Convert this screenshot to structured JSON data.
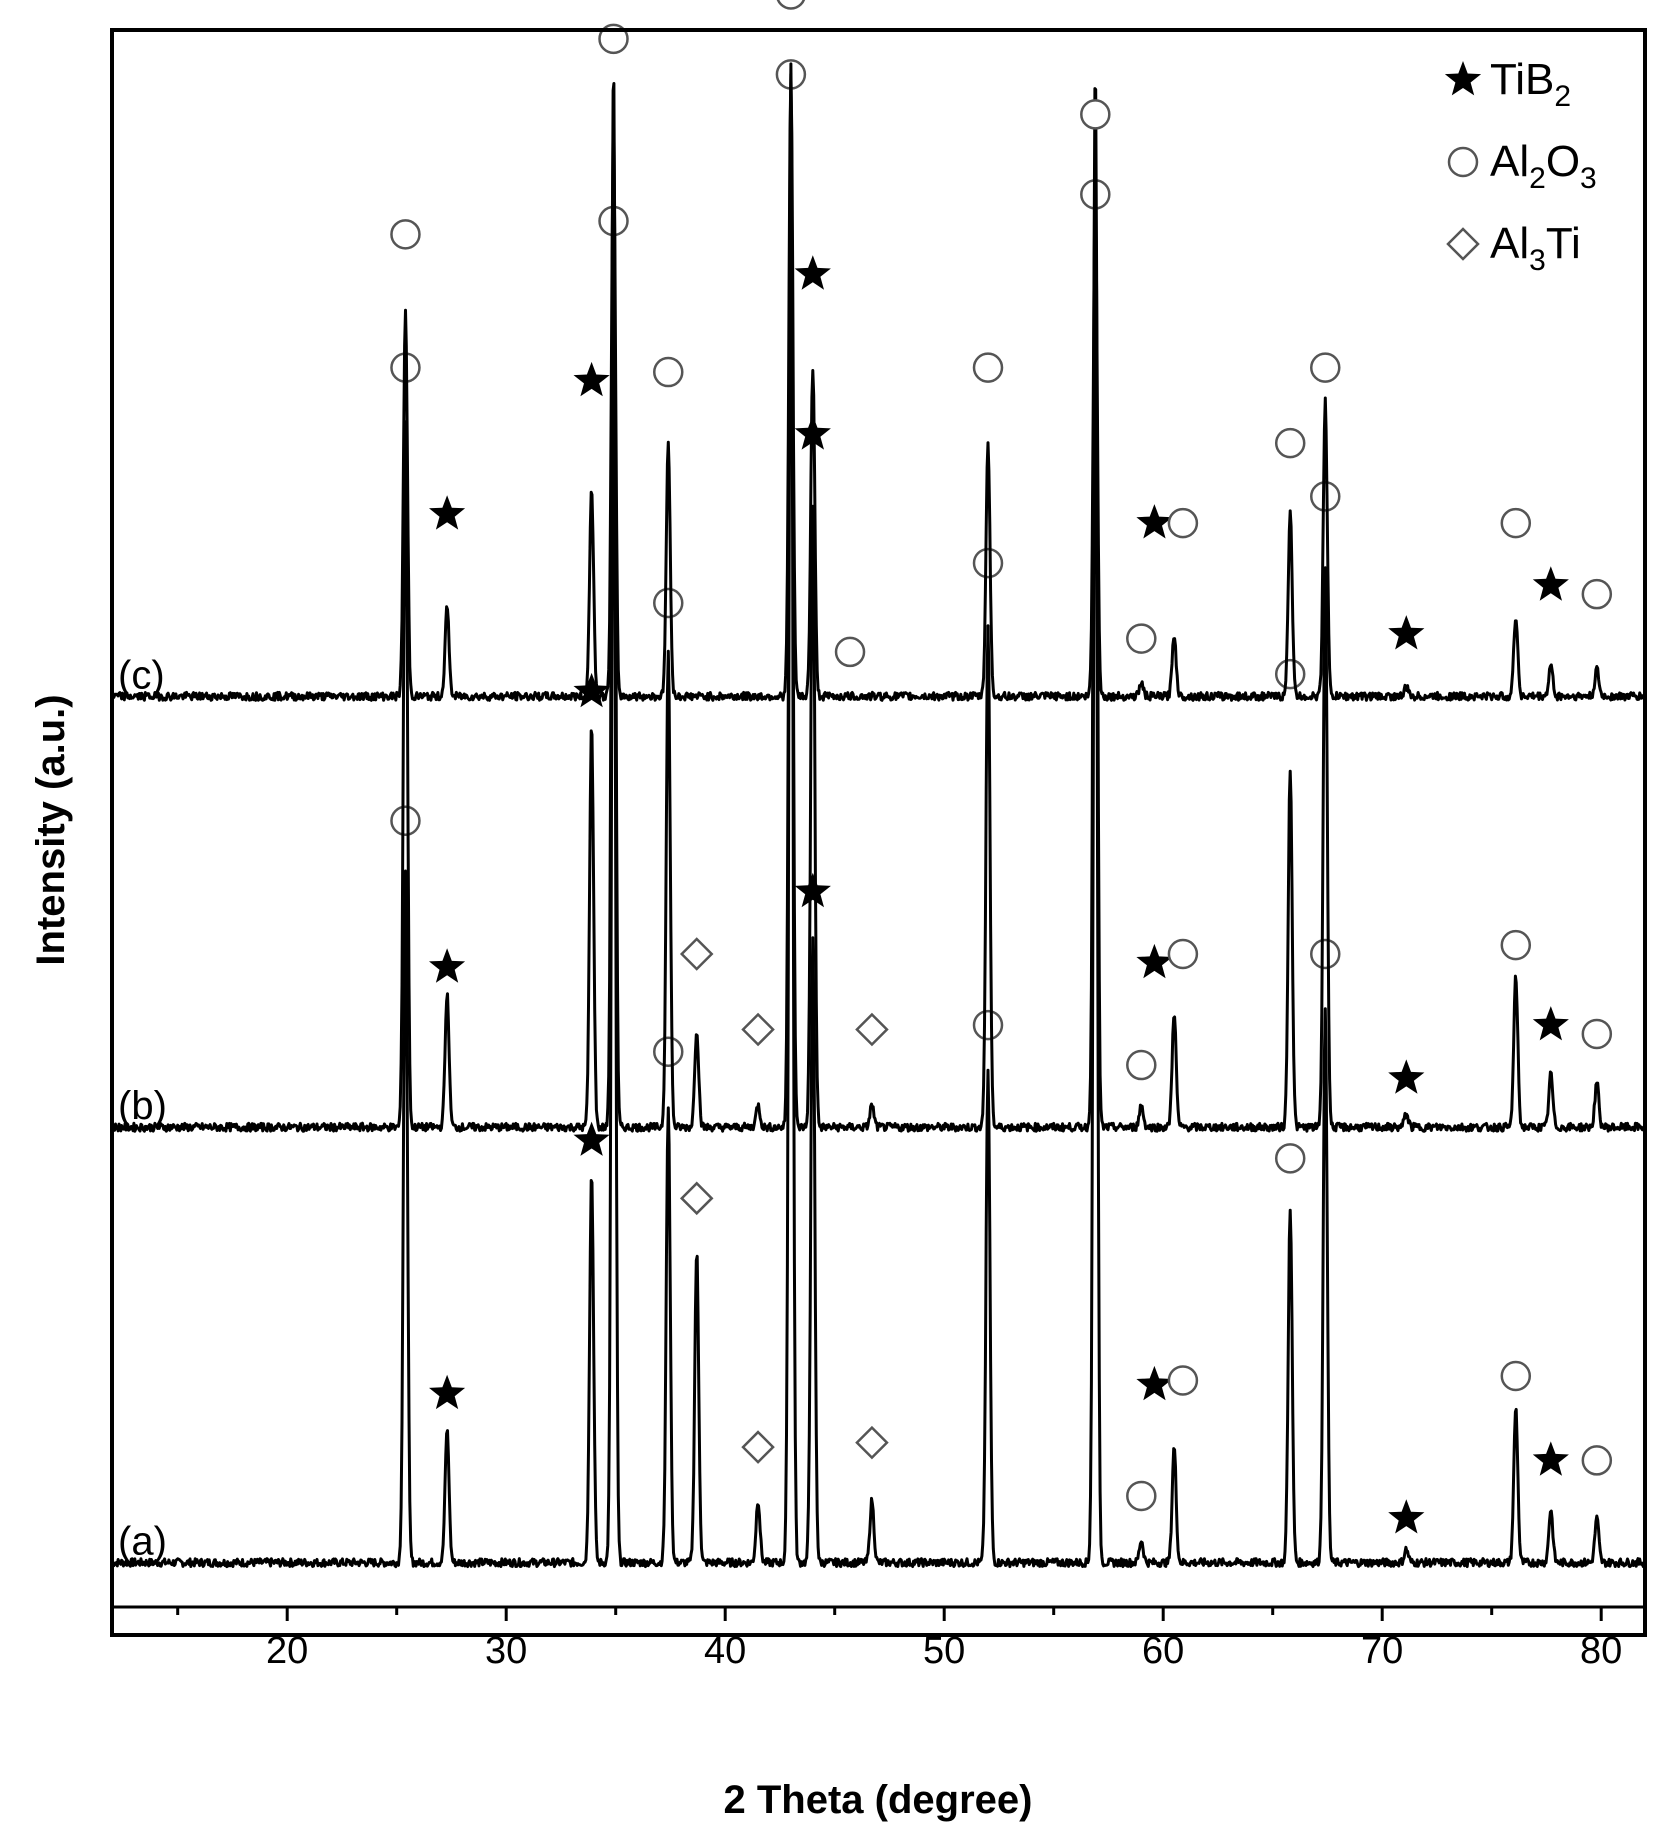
{
  "chart_data": {
    "type": "line",
    "title": "",
    "xlabel": "2 Theta (degree)",
    "ylabel": "Intensity (a.u.)",
    "xlim": [
      12,
      82
    ],
    "ylim": [
      0,
      3.55
    ],
    "xticks": [
      20,
      30,
      40,
      50,
      60,
      70,
      80
    ],
    "x_tick_labels": [
      "20",
      "30",
      "40",
      "50",
      "60",
      "70",
      "80"
    ],
    "yticks_shown": false,
    "grid": false,
    "legend": {
      "placement": "top-right",
      "entries": [
        {
          "marker": "star",
          "base": "Ti",
          "sub": "",
          "mid": "B",
          "sub2": "2",
          "end": "",
          "label": "TiB2"
        },
        {
          "marker": "circle",
          "base": "Al",
          "sub": "2",
          "mid": "O",
          "sub2": "3",
          "end": "",
          "label": "Al2O3"
        },
        {
          "marker": "diamond",
          "base": "Al",
          "sub": "3",
          "mid": "Ti",
          "sub2": "",
          "end": "",
          "label": "Al3Ti"
        }
      ]
    },
    "series": [
      {
        "name": "(a)",
        "baseline": 0.1,
        "peaks": [
          {
            "x": 25.4,
            "h": 1.55,
            "phase": "Al2O3"
          },
          {
            "x": 27.3,
            "h": 0.3,
            "phase": "TiB2"
          },
          {
            "x": 33.9,
            "h": 0.88,
            "phase": "TiB2"
          },
          {
            "x": 34.9,
            "h": 2.9,
            "phase": "Al2O3"
          },
          {
            "x": 37.4,
            "h": 1.03,
            "phase": "Al2O3"
          },
          {
            "x": 38.7,
            "h": 0.7,
            "phase": "Al3Ti"
          },
          {
            "x": 41.5,
            "h": 0.14,
            "phase": "Al3Ti"
          },
          {
            "x": 43.0,
            "h": 3.3,
            "phase": "Al2O3"
          },
          {
            "x": 44.0,
            "h": 1.4,
            "phase": "TiB2"
          },
          {
            "x": 46.7,
            "h": 0.14,
            "phase": "Al3Ti"
          },
          {
            "x": 52.0,
            "h": 1.1,
            "phase": "Al2O3"
          },
          {
            "x": 56.9,
            "h": 3.0,
            "phase": "Al2O3"
          },
          {
            "x": 59.0,
            "h": 0.05,
            "phase": "Al2O3"
          },
          {
            "x": 60.5,
            "h": 0.26,
            "phase": "TiB2"
          },
          {
            "x": 65.8,
            "h": 0.8,
            "phase": "Al2O3"
          },
          {
            "x": 67.4,
            "h": 1.25,
            "phase": "Al2O3"
          },
          {
            "x": 71.1,
            "h": 0.03,
            "phase": "TiB2"
          },
          {
            "x": 76.1,
            "h": 0.35,
            "phase": "Al2O3"
          },
          {
            "x": 77.7,
            "h": 0.12,
            "phase": "TiB2"
          },
          {
            "x": 79.8,
            "h": 0.1,
            "phase": "Al2O3"
          }
        ],
        "markers": [
          {
            "x": 25.4,
            "y": 1.77,
            "type": "circle"
          },
          {
            "x": 27.3,
            "y": 0.48,
            "type": "star"
          },
          {
            "x": 33.9,
            "y": 1.05,
            "type": "star"
          },
          {
            "x": 34.9,
            "y": 3.12,
            "type": "circle"
          },
          {
            "x": 37.4,
            "y": 1.25,
            "type": "circle"
          },
          {
            "x": 38.7,
            "y": 0.92,
            "type": "diamond"
          },
          {
            "x": 41.5,
            "y": 0.36,
            "type": "diamond"
          },
          {
            "x": 43.0,
            "y": 3.45,
            "type": "circle"
          },
          {
            "x": 44.0,
            "y": 1.61,
            "type": "star"
          },
          {
            "x": 46.7,
            "y": 0.37,
            "type": "diamond"
          },
          {
            "x": 52.0,
            "y": 1.31,
            "type": "circle"
          },
          {
            "x": 56.9,
            "y": 3.18,
            "type": "circle"
          },
          {
            "x": 59.0,
            "y": 0.25,
            "type": "circle"
          },
          {
            "x": 59.6,
            "y": 0.5,
            "type": "star"
          },
          {
            "x": 60.9,
            "y": 0.51,
            "type": "circle"
          },
          {
            "x": 65.8,
            "y": 1.01,
            "type": "circle"
          },
          {
            "x": 67.4,
            "y": 1.47,
            "type": "circle"
          },
          {
            "x": 71.1,
            "y": 0.2,
            "type": "star"
          },
          {
            "x": 76.1,
            "y": 0.52,
            "type": "circle"
          },
          {
            "x": 77.7,
            "y": 0.33,
            "type": "star"
          },
          {
            "x": 79.8,
            "y": 0.33,
            "type": "circle"
          }
        ]
      },
      {
        "name": "(b)",
        "baseline": 1.08,
        "peaks": [
          {
            "x": 25.4,
            "h": 1.59,
            "phase": "Al2O3"
          },
          {
            "x": 27.3,
            "h": 0.3,
            "phase": "TiB2"
          },
          {
            "x": 33.9,
            "h": 0.91,
            "phase": "TiB2"
          },
          {
            "x": 34.9,
            "h": 2.4,
            "phase": "Al2O3"
          },
          {
            "x": 37.4,
            "h": 1.07,
            "phase": "Al2O3"
          },
          {
            "x": 38.7,
            "h": 0.22,
            "phase": "Al3Ti"
          },
          {
            "x": 41.5,
            "h": 0.05,
            "phase": "Al3Ti"
          },
          {
            "x": 43.0,
            "h": 2.4,
            "phase": "Al2O3"
          },
          {
            "x": 44.0,
            "h": 1.4,
            "phase": "TiB2"
          },
          {
            "x": 46.7,
            "h": 0.05,
            "phase": "Al3Ti"
          },
          {
            "x": 52.0,
            "h": 1.12,
            "phase": "Al2O3"
          },
          {
            "x": 56.9,
            "h": 2.4,
            "phase": "Al2O3"
          },
          {
            "x": 59.0,
            "h": 0.05,
            "phase": "Al2O3"
          },
          {
            "x": 60.5,
            "h": 0.26,
            "phase": "TiB2"
          },
          {
            "x": 65.8,
            "h": 0.81,
            "phase": "Al2O3"
          },
          {
            "x": 67.4,
            "h": 1.26,
            "phase": "Al2O3"
          },
          {
            "x": 71.1,
            "h": 0.03,
            "phase": "TiB2"
          },
          {
            "x": 76.1,
            "h": 0.34,
            "phase": "Al2O3"
          },
          {
            "x": 77.7,
            "h": 0.12,
            "phase": "TiB2"
          },
          {
            "x": 79.8,
            "h": 0.1,
            "phase": "Al2O3"
          }
        ],
        "markers": [
          {
            "x": 25.4,
            "y": 2.79,
            "type": "circle"
          },
          {
            "x": 27.3,
            "y": 1.44,
            "type": "star"
          },
          {
            "x": 33.9,
            "y": 2.06,
            "type": "star"
          },
          {
            "x": 37.4,
            "y": 2.26,
            "type": "circle"
          },
          {
            "x": 38.7,
            "y": 1.47,
            "type": "diamond"
          },
          {
            "x": 41.5,
            "y": 1.3,
            "type": "diamond"
          },
          {
            "x": 44.0,
            "y": 2.64,
            "type": "star"
          },
          {
            "x": 46.7,
            "y": 1.3,
            "type": "diamond"
          },
          {
            "x": 52.0,
            "y": 2.35,
            "type": "circle"
          },
          {
            "x": 59.0,
            "y": 1.22,
            "type": "circle"
          },
          {
            "x": 59.6,
            "y": 1.45,
            "type": "star"
          },
          {
            "x": 60.9,
            "y": 1.47,
            "type": "circle"
          },
          {
            "x": 65.8,
            "y": 2.1,
            "type": "circle"
          },
          {
            "x": 67.4,
            "y": 2.5,
            "type": "circle"
          },
          {
            "x": 71.1,
            "y": 1.19,
            "type": "star"
          },
          {
            "x": 76.1,
            "y": 1.49,
            "type": "circle"
          },
          {
            "x": 77.7,
            "y": 1.31,
            "type": "star"
          },
          {
            "x": 79.8,
            "y": 1.29,
            "type": "circle"
          }
        ]
      },
      {
        "name": "(c)",
        "baseline": 2.05,
        "peaks": [
          {
            "x": 25.4,
            "h": 0.87,
            "phase": "Al2O3"
          },
          {
            "x": 27.3,
            "h": 0.2,
            "phase": "TiB2"
          },
          {
            "x": 33.9,
            "h": 0.47,
            "phase": "TiB2"
          },
          {
            "x": 34.9,
            "h": 1.3,
            "phase": "Al2O3"
          },
          {
            "x": 37.4,
            "h": 0.57,
            "phase": "Al2O3"
          },
          {
            "x": 43.0,
            "h": 1.4,
            "phase": "Al2O3"
          },
          {
            "x": 44.0,
            "h": 0.74,
            "phase": "TiB2"
          },
          {
            "x": 45.7,
            "h": 0.0,
            "phase": "Al2O3"
          },
          {
            "x": 52.0,
            "h": 0.57,
            "phase": "Al2O3"
          },
          {
            "x": 56.9,
            "h": 1.15,
            "phase": "Al2O3"
          },
          {
            "x": 59.0,
            "h": 0.03,
            "phase": "Al2O3"
          },
          {
            "x": 60.5,
            "h": 0.14,
            "phase": "TiB2"
          },
          {
            "x": 65.8,
            "h": 0.42,
            "phase": "Al2O3"
          },
          {
            "x": 67.4,
            "h": 0.67,
            "phase": "Al2O3"
          },
          {
            "x": 71.1,
            "h": 0.02,
            "phase": "TiB2"
          },
          {
            "x": 76.1,
            "h": 0.18,
            "phase": "Al2O3"
          },
          {
            "x": 77.7,
            "h": 0.07,
            "phase": "TiB2"
          },
          {
            "x": 79.8,
            "h": 0.06,
            "phase": "Al2O3"
          }
        ],
        "markers": [
          {
            "x": 25.4,
            "y": 3.09,
            "type": "circle"
          },
          {
            "x": 27.3,
            "y": 2.46,
            "type": "star"
          },
          {
            "x": 33.9,
            "y": 2.76,
            "type": "star"
          },
          {
            "x": 34.9,
            "y": 3.53,
            "type": "circle"
          },
          {
            "x": 37.4,
            "y": 2.78,
            "type": "circle"
          },
          {
            "x": 43.0,
            "y": 3.63,
            "type": "circle"
          },
          {
            "x": 44.0,
            "y": 3.0,
            "type": "star"
          },
          {
            "x": 45.7,
            "y": 2.15,
            "type": "circle"
          },
          {
            "x": 52.0,
            "y": 2.79,
            "type": "circle"
          },
          {
            "x": 56.9,
            "y": 3.36,
            "type": "circle"
          },
          {
            "x": 59.0,
            "y": 2.18,
            "type": "circle"
          },
          {
            "x": 59.6,
            "y": 2.44,
            "type": "star"
          },
          {
            "x": 60.9,
            "y": 2.44,
            "type": "circle"
          },
          {
            "x": 65.8,
            "y": 2.62,
            "type": "circle"
          },
          {
            "x": 67.4,
            "y": 2.79,
            "type": "circle"
          },
          {
            "x": 71.1,
            "y": 2.19,
            "type": "star"
          },
          {
            "x": 76.1,
            "y": 2.44,
            "type": "circle"
          },
          {
            "x": 77.7,
            "y": 2.3,
            "type": "star"
          },
          {
            "x": 79.8,
            "y": 2.28,
            "type": "circle"
          }
        ]
      }
    ]
  }
}
